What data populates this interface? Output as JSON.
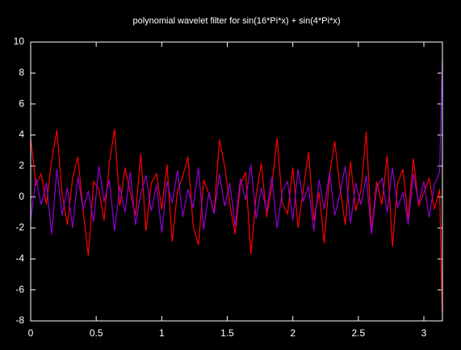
{
  "chart_data": {
    "type": "line",
    "title": "polynomial wavelet filter for sin(16*Pi*x) + sin(4*Pi*x)",
    "x": [
      0,
      0.04,
      0.08,
      0.12,
      0.16,
      0.2,
      0.24,
      0.28,
      0.32,
      0.36,
      0.4,
      0.44,
      0.48,
      0.52,
      0.56,
      0.6,
      0.64,
      0.68,
      0.72,
      0.76,
      0.8,
      0.84,
      0.88,
      0.92,
      0.96,
      1,
      1.04,
      1.08,
      1.12,
      1.16,
      1.2,
      1.24,
      1.28,
      1.32,
      1.36,
      1.4,
      1.44,
      1.48,
      1.52,
      1.56,
      1.6,
      1.64,
      1.68,
      1.72,
      1.76,
      1.8,
      1.84,
      1.88,
      1.92,
      1.96,
      2,
      2.04,
      2.08,
      2.12,
      2.16,
      2.2,
      2.24,
      2.28,
      2.32,
      2.36,
      2.4,
      2.44,
      2.48,
      2.52,
      2.56,
      2.6,
      2.64,
      2.68,
      2.72,
      2.76,
      2.8,
      2.84,
      2.88,
      2.92,
      2.96,
      3,
      3.04,
      3.08,
      3.12,
      3.14
    ],
    "series": [
      {
        "color": "#ff0000",
        "values": [
          3.8,
          0.8,
          1.5,
          -0.5,
          2.4,
          4.3,
          0.2,
          -1.8,
          1.2,
          2.6,
          -0.9,
          -3.8,
          1.0,
          0.5,
          -1.5,
          2.2,
          4.4,
          -0.6,
          1.9,
          0.3,
          -1.2,
          2.8,
          -2.2,
          0.9,
          1.5,
          -0.8,
          2.1,
          -2.9,
          0.4,
          1.3,
          2.6,
          -1.9,
          -3.1,
          1.1,
          0.2,
          -1.0,
          3.7,
          2.0,
          -0.5,
          -2.4,
          0.8,
          1.6,
          -3.7,
          0.1,
          2.2,
          -1.3,
          0.7,
          3.8,
          -0.4,
          -1.1,
          1.9,
          -2.0,
          0.5,
          2.9,
          -1.5,
          0.3,
          -3.0,
          1.4,
          3.6,
          0.6,
          -1.8,
          2.3,
          -0.9,
          0.4,
          4.2,
          -2.2,
          1.0,
          -0.5,
          2.7,
          -3.2,
          0.9,
          1.8,
          -1.4,
          2.5,
          -0.6,
          0.3,
          1.2,
          -0.8,
          0.5,
          -7.5
        ]
      },
      {
        "color": "#9400d3",
        "values": [
          -1.5,
          1.2,
          -0.5,
          0.9,
          -2.4,
          1.8,
          -1.2,
          0.6,
          -2.0,
          1.3,
          -0.8,
          0.4,
          -1.6,
          2.0,
          -0.3,
          1.1,
          -2.2,
          0.7,
          -1.0,
          1.6,
          -1.8,
          0.2,
          1.4,
          -0.9,
          0.8,
          -2.3,
          1.0,
          -0.4,
          1.7,
          -1.3,
          0.5,
          -0.7,
          1.9,
          -2.1,
          0.3,
          -1.1,
          1.5,
          -0.6,
          0.9,
          -1.9,
          1.2,
          -0.2,
          2.1,
          -1.4,
          0.6,
          -0.9,
          1.3,
          -2.0,
          0.4,
          1.0,
          -1.5,
          1.8,
          -0.3,
          0.7,
          -2.2,
          1.1,
          -0.8,
          1.6,
          -1.2,
          0.2,
          2.0,
          -1.7,
          0.9,
          -0.5,
          1.4,
          -2.4,
          0.6,
          1.2,
          -1.0,
          1.9,
          -0.7,
          0.3,
          -1.8,
          1.5,
          -0.4,
          1.0,
          -1.3,
          0.8,
          1.6,
          8.8
        ]
      }
    ],
    "xlim": [
      0,
      3.14159
    ],
    "xticks": [
      0,
      0.5,
      1,
      1.5,
      2,
      2.5,
      3
    ],
    "ylim": [
      -8,
      10
    ],
    "yticks": [
      -8,
      -6,
      -4,
      -2,
      0,
      2,
      4,
      6,
      8,
      10
    ],
    "grid": false
  }
}
